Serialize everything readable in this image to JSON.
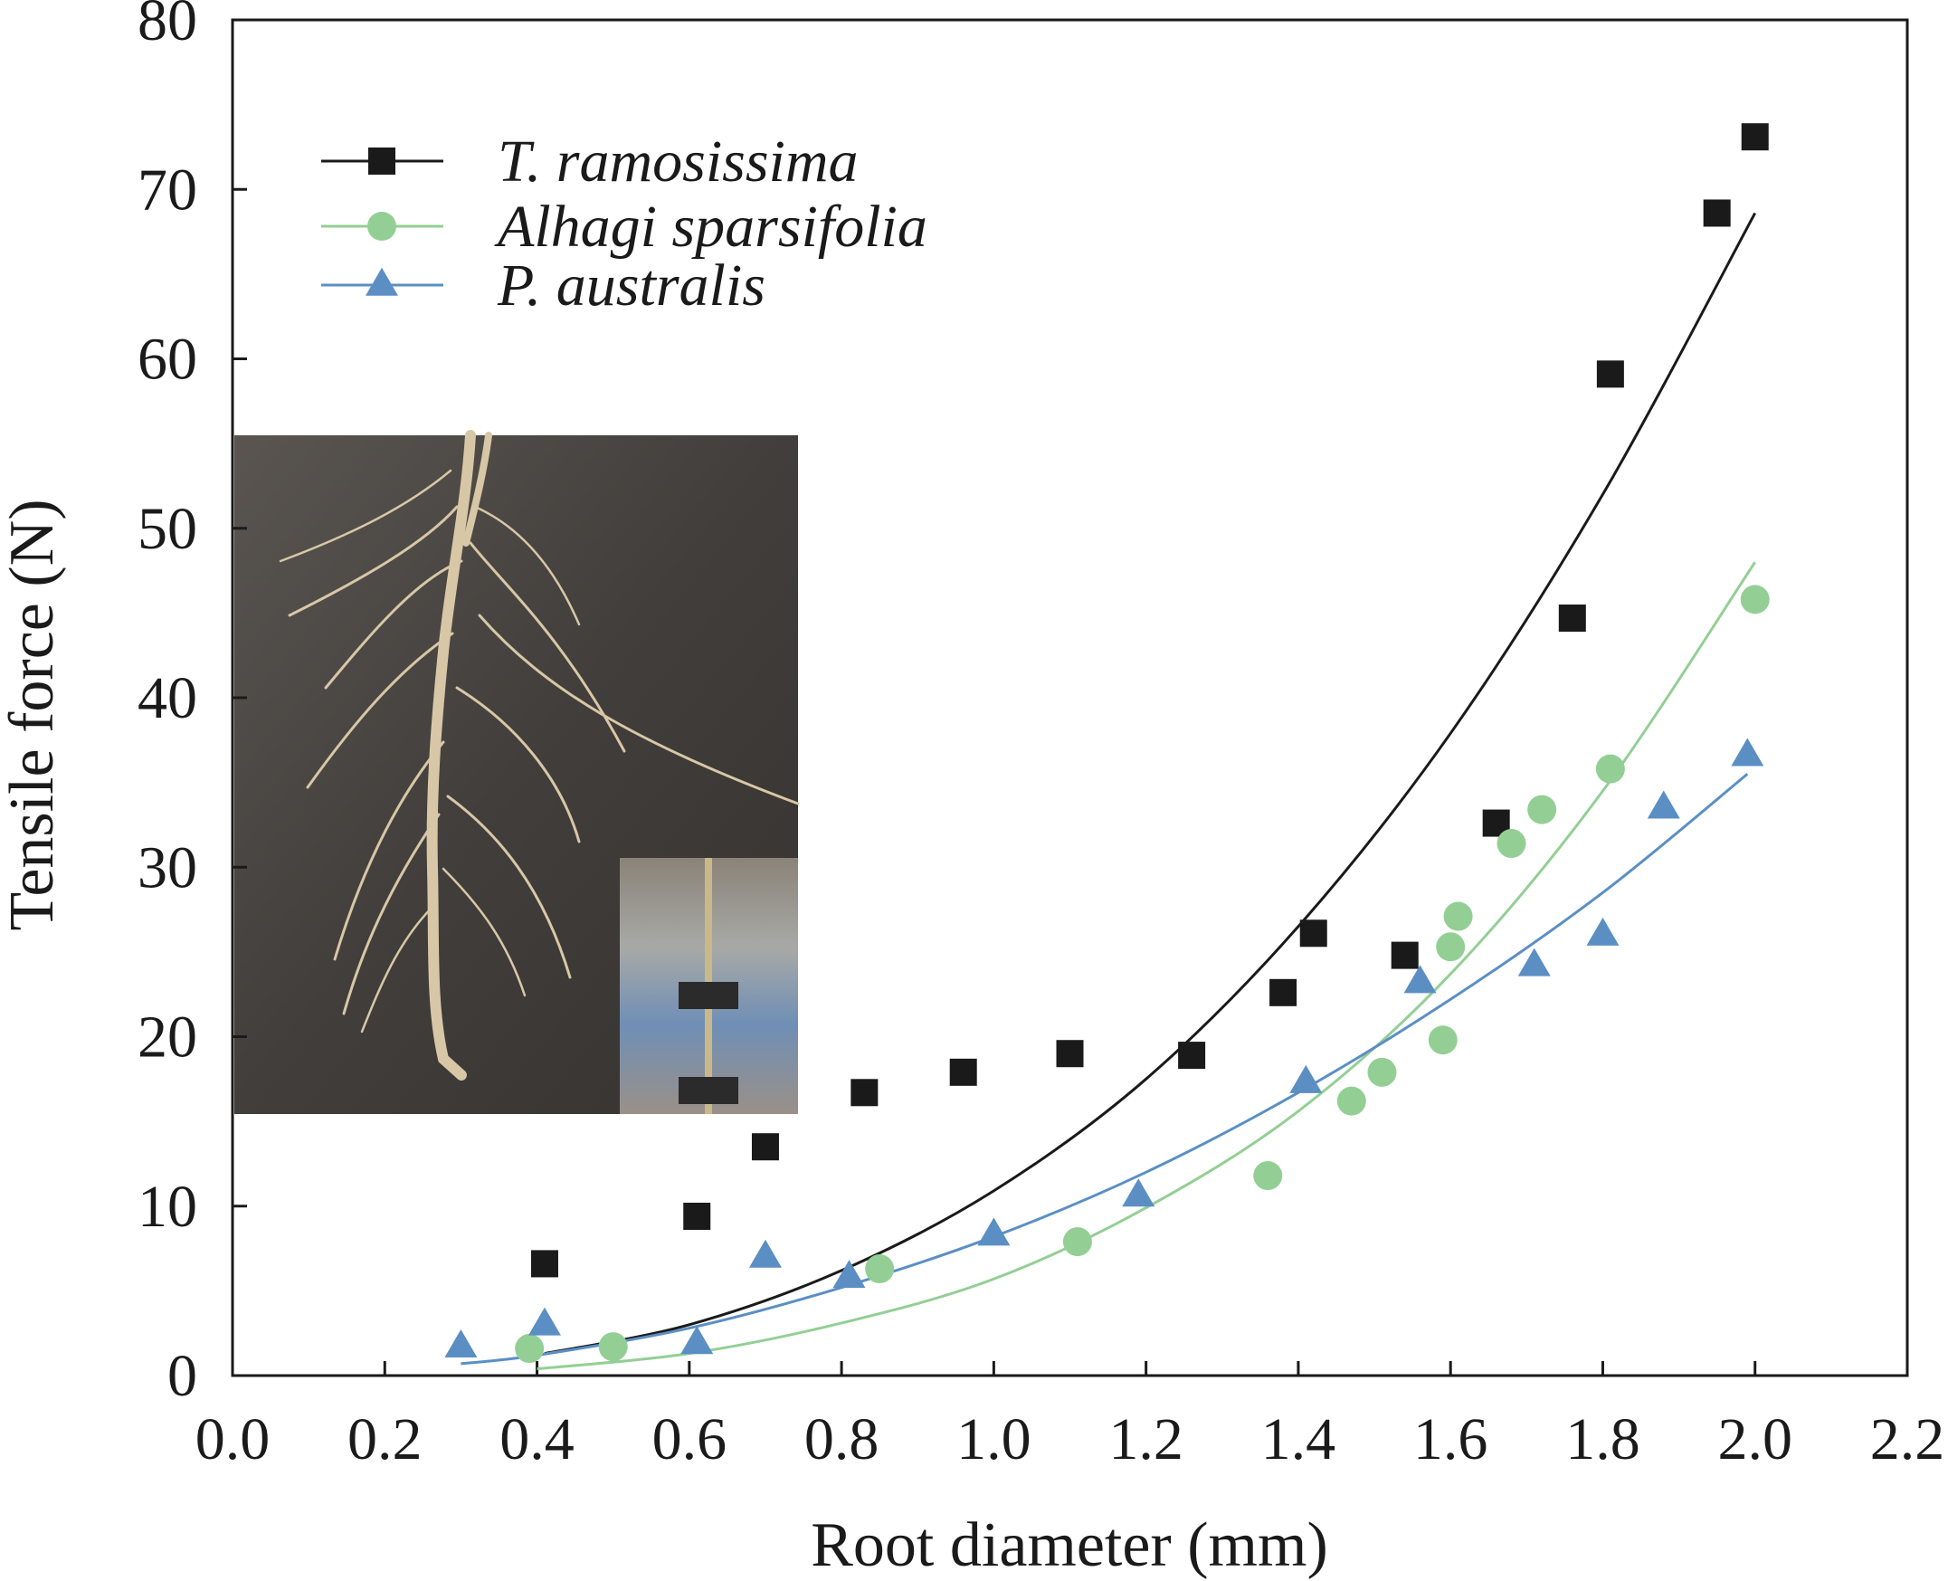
{
  "chart_data": {
    "type": "scatter",
    "title": "",
    "xlabel": "Root diameter (mm)",
    "ylabel": "Tensile force (N)",
    "xlim": [
      0.0,
      2.2
    ],
    "ylim": [
      0,
      80
    ],
    "xticks": [
      0.0,
      0.2,
      0.4,
      0.6,
      0.8,
      1.0,
      1.2,
      1.4,
      1.6,
      1.8,
      2.0,
      2.2
    ],
    "xtick_labels": [
      "0.0",
      "0.2",
      "0.4",
      "0.6",
      "0.8",
      "1.0",
      "1.2",
      "1.4",
      "1.6",
      "1.8",
      "2.0",
      "2.2"
    ],
    "yticks": [
      0,
      10,
      20,
      30,
      40,
      50,
      60,
      70,
      80
    ],
    "ytick_labels": [
      "0",
      "10",
      "20",
      "30",
      "40",
      "50",
      "60",
      "70",
      "80"
    ],
    "grid": false,
    "legend_position": "top-left",
    "series": [
      {
        "name": "T. ramosissima",
        "marker": "square",
        "color": "#1a1a1a",
        "points": [
          {
            "x": 0.41,
            "y": 6.6
          },
          {
            "x": 0.61,
            "y": 9.4
          },
          {
            "x": 0.7,
            "y": 13.5
          },
          {
            "x": 0.83,
            "y": 16.7
          },
          {
            "x": 0.96,
            "y": 17.9
          },
          {
            "x": 1.1,
            "y": 19.0
          },
          {
            "x": 1.26,
            "y": 18.9
          },
          {
            "x": 1.38,
            "y": 22.6
          },
          {
            "x": 1.42,
            "y": 26.1
          },
          {
            "x": 1.54,
            "y": 24.8
          },
          {
            "x": 1.66,
            "y": 32.6
          },
          {
            "x": 1.76,
            "y": 44.7
          },
          {
            "x": 1.81,
            "y": 59.1
          },
          {
            "x": 1.95,
            "y": 68.6
          },
          {
            "x": 2.0,
            "y": 73.1
          }
        ],
        "fit": {
          "x": [
            0.41,
            0.6,
            0.8,
            1.0,
            1.2,
            1.4,
            1.6,
            1.8,
            2.0
          ],
          "y": [
            1.3,
            3.0,
            6.2,
            10.9,
            17.5,
            26.5,
            37.9,
            52.0,
            68.6
          ]
        }
      },
      {
        "name": "Alhagi sparsifolia",
        "marker": "circle",
        "color": "#93cf94",
        "points": [
          {
            "x": 0.39,
            "y": 1.6
          },
          {
            "x": 0.5,
            "y": 1.7
          },
          {
            "x": 0.85,
            "y": 6.3
          },
          {
            "x": 1.11,
            "y": 7.9
          },
          {
            "x": 1.36,
            "y": 11.8
          },
          {
            "x": 1.47,
            "y": 16.2
          },
          {
            "x": 1.51,
            "y": 17.9
          },
          {
            "x": 1.59,
            "y": 19.8
          },
          {
            "x": 1.6,
            "y": 25.3
          },
          {
            "x": 1.61,
            "y": 27.1
          },
          {
            "x": 1.68,
            "y": 31.4
          },
          {
            "x": 1.72,
            "y": 33.4
          },
          {
            "x": 1.81,
            "y": 35.8
          },
          {
            "x": 2.0,
            "y": 45.8
          }
        ],
        "fit": {
          "x": [
            0.4,
            0.6,
            0.8,
            1.0,
            1.2,
            1.4,
            1.6,
            1.8,
            2.0
          ],
          "y": [
            0.4,
            1.3,
            3.1,
            5.7,
            9.9,
            15.6,
            23.7,
            34.5,
            48.0
          ]
        }
      },
      {
        "name": "P. australis",
        "marker": "triangle",
        "color": "#5b8fc4",
        "points": [
          {
            "x": 0.3,
            "y": 1.7
          },
          {
            "x": 0.41,
            "y": 3.0
          },
          {
            "x": 0.61,
            "y": 1.9
          },
          {
            "x": 0.7,
            "y": 7.0
          },
          {
            "x": 0.81,
            "y": 5.8
          },
          {
            "x": 1.0,
            "y": 8.3
          },
          {
            "x": 1.19,
            "y": 10.6
          },
          {
            "x": 1.41,
            "y": 17.3
          },
          {
            "x": 1.56,
            "y": 23.2
          },
          {
            "x": 1.71,
            "y": 24.2
          },
          {
            "x": 1.8,
            "y": 26.0
          },
          {
            "x": 1.88,
            "y": 33.5
          },
          {
            "x": 1.99,
            "y": 36.6
          }
        ],
        "fit": {
          "x": [
            0.3,
            0.4,
            0.6,
            0.8,
            1.0,
            1.2,
            1.4,
            1.6,
            1.8,
            1.99
          ],
          "y": [
            0.7,
            1.2,
            2.8,
            5.2,
            8.2,
            12.0,
            16.7,
            22.2,
            28.5,
            35.5
          ]
        }
      }
    ]
  }
}
